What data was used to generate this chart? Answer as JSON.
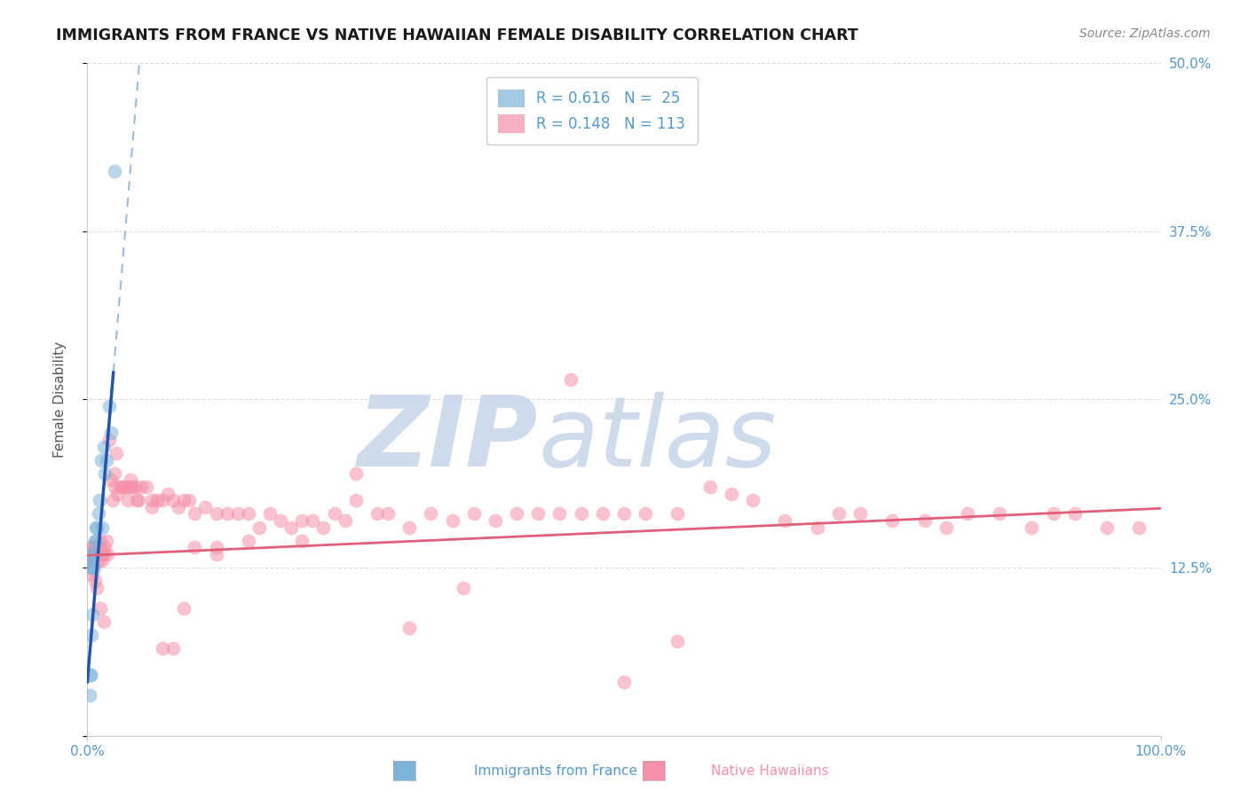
{
  "title": "IMMIGRANTS FROM FRANCE VS NATIVE HAWAIIAN FEMALE DISABILITY CORRELATION CHART",
  "source": "Source: ZipAtlas.com",
  "ylabel": "Female Disability",
  "xlim": [
    0.0,
    1.0
  ],
  "ylim": [
    0.0,
    0.5
  ],
  "yticks": [
    0.0,
    0.125,
    0.25,
    0.375,
    0.5
  ],
  "ytick_labels": [
    "",
    "12.5%",
    "25.0%",
    "37.5%",
    "50.0%"
  ],
  "legend_R1": "R = 0.616",
  "legend_N1": "N =  25",
  "legend_R2": "R = 0.148",
  "legend_N2": "N = 113",
  "blue_color": "#7EB3D8",
  "pink_color": "#F590A8",
  "label1": "Immigrants from France",
  "label2": "Native Hawaiians",
  "blue_scatter_x": [
    0.005,
    0.003,
    0.008,
    0.011,
    0.006,
    0.004,
    0.009,
    0.014,
    0.018,
    0.022,
    0.016,
    0.007,
    0.003,
    0.006,
    0.01,
    0.02,
    0.013,
    0.008,
    0.005,
    0.003,
    0.015,
    0.003,
    0.004,
    0.002,
    0.025
  ],
  "blue_scatter_y": [
    0.09,
    0.135,
    0.145,
    0.175,
    0.125,
    0.13,
    0.155,
    0.155,
    0.205,
    0.225,
    0.195,
    0.145,
    0.125,
    0.135,
    0.165,
    0.245,
    0.205,
    0.155,
    0.125,
    0.045,
    0.215,
    0.045,
    0.075,
    0.03,
    0.42
  ],
  "pink_scatter_x": [
    0.001,
    0.002,
    0.003,
    0.004,
    0.005,
    0.006,
    0.007,
    0.008,
    0.009,
    0.01,
    0.011,
    0.012,
    0.013,
    0.014,
    0.015,
    0.016,
    0.018,
    0.019,
    0.02,
    0.022,
    0.024,
    0.025,
    0.027,
    0.028,
    0.03,
    0.032,
    0.034,
    0.036,
    0.038,
    0.04,
    0.042,
    0.044,
    0.046,
    0.048,
    0.05,
    0.055,
    0.06,
    0.065,
    0.07,
    0.075,
    0.08,
    0.085,
    0.09,
    0.095,
    0.1,
    0.11,
    0.12,
    0.13,
    0.14,
    0.15,
    0.16,
    0.17,
    0.18,
    0.19,
    0.2,
    0.21,
    0.22,
    0.23,
    0.24,
    0.25,
    0.27,
    0.28,
    0.3,
    0.32,
    0.34,
    0.36,
    0.38,
    0.4,
    0.42,
    0.44,
    0.46,
    0.48,
    0.5,
    0.52,
    0.55,
    0.58,
    0.6,
    0.62,
    0.65,
    0.68,
    0.7,
    0.72,
    0.75,
    0.78,
    0.8,
    0.82,
    0.85,
    0.88,
    0.9,
    0.92,
    0.95,
    0.98,
    0.003,
    0.005,
    0.007,
    0.009,
    0.012,
    0.015,
    0.025,
    0.04,
    0.06,
    0.08,
    0.35,
    0.45,
    0.55,
    0.5,
    0.3,
    0.25,
    0.15,
    0.12,
    0.1,
    0.2,
    0.12,
    0.09,
    0.07
  ],
  "pink_scatter_y": [
    0.135,
    0.14,
    0.13,
    0.125,
    0.14,
    0.135,
    0.14,
    0.135,
    0.14,
    0.13,
    0.14,
    0.145,
    0.135,
    0.13,
    0.135,
    0.14,
    0.145,
    0.135,
    0.22,
    0.19,
    0.175,
    0.185,
    0.21,
    0.18,
    0.185,
    0.185,
    0.185,
    0.185,
    0.175,
    0.185,
    0.185,
    0.185,
    0.175,
    0.175,
    0.185,
    0.185,
    0.175,
    0.175,
    0.175,
    0.18,
    0.175,
    0.17,
    0.175,
    0.175,
    0.165,
    0.17,
    0.165,
    0.165,
    0.165,
    0.165,
    0.155,
    0.165,
    0.16,
    0.155,
    0.16,
    0.16,
    0.155,
    0.165,
    0.16,
    0.175,
    0.165,
    0.165,
    0.155,
    0.165,
    0.16,
    0.165,
    0.16,
    0.165,
    0.165,
    0.165,
    0.165,
    0.165,
    0.165,
    0.165,
    0.165,
    0.185,
    0.18,
    0.175,
    0.16,
    0.155,
    0.165,
    0.165,
    0.16,
    0.16,
    0.155,
    0.165,
    0.165,
    0.155,
    0.165,
    0.165,
    0.155,
    0.155,
    0.13,
    0.12,
    0.115,
    0.11,
    0.095,
    0.085,
    0.195,
    0.19,
    0.17,
    0.065,
    0.11,
    0.265,
    0.07,
    0.04,
    0.08,
    0.195,
    0.145,
    0.135,
    0.14,
    0.145,
    0.14,
    0.095,
    0.065
  ],
  "watermark_zip": "ZIP",
  "watermark_atlas": "atlas",
  "watermark_color": "#C8D8E8",
  "background_color": "#FFFFFF",
  "grid_color": "#DDDDDD",
  "axis_color": "#CCCCCC",
  "tick_color": "#5599CC",
  "title_fontsize": 12.5,
  "source_fontsize": 10,
  "axis_label_fontsize": 11,
  "tick_fontsize": 11,
  "legend_fontsize": 12,
  "blue_line_color": "#2255AA",
  "blue_dash_color": "#99BBDD",
  "pink_line_color": "#E0607A"
}
